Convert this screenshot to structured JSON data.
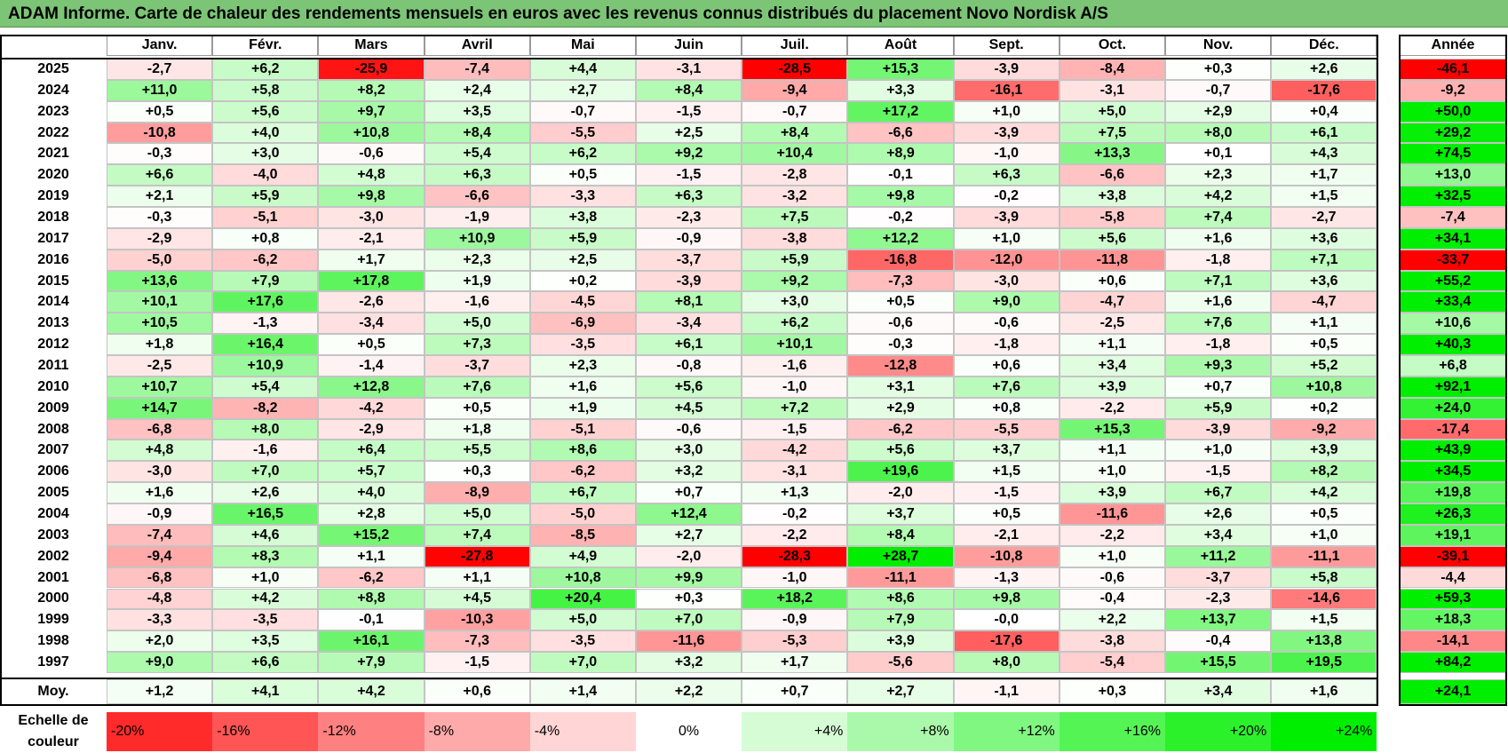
{
  "title": "ADAM Informe. Carte de chaleur des rendements mensuels en euros avec les revenus connus distribués du placement Novo Nordisk A/S",
  "chart_data": {
    "type": "heatmap",
    "title": "ADAM Informe. Carte de chaleur des rendements mensuels en euros avec les revenus connus distribués du placement Novo Nordisk A/S",
    "columns": [
      "Janv.",
      "Févr.",
      "Mars",
      "Avril",
      "Mai",
      "Juin",
      "Juil.",
      "Août",
      "Sept.",
      "Oct.",
      "Nov.",
      "Déc."
    ],
    "year_header": "Année",
    "rows": [
      {
        "label": "2025",
        "values": [
          "-2,7",
          "+6,2",
          "-25,9",
          "-7,4",
          "+4,4",
          "-3,1",
          "-28,5",
          "+15,3",
          "-3,9",
          "-8,4",
          "+0,3",
          "+2,6"
        ],
        "year": "-46,1"
      },
      {
        "label": "2024",
        "values": [
          "+11,0",
          "+5,8",
          "+8,2",
          "+2,4",
          "+2,7",
          "+8,4",
          "-9,4",
          "+3,3",
          "-16,1",
          "-3,1",
          "-0,7",
          "-17,6"
        ],
        "year": "-9,2"
      },
      {
        "label": "2023",
        "values": [
          "+0,5",
          "+5,6",
          "+9,7",
          "+3,5",
          "-0,7",
          "-1,5",
          "-0,7",
          "+17,2",
          "+1,0",
          "+5,0",
          "+2,9",
          "+0,4"
        ],
        "year": "+50,0"
      },
      {
        "label": "2022",
        "values": [
          "-10,8",
          "+4,0",
          "+10,8",
          "+8,4",
          "-5,5",
          "+2,5",
          "+8,4",
          "-6,6",
          "-3,9",
          "+7,5",
          "+8,0",
          "+6,1"
        ],
        "year": "+29,2"
      },
      {
        "label": "2021",
        "values": [
          "-0,3",
          "+3,0",
          "-0,6",
          "+5,4",
          "+6,2",
          "+9,2",
          "+10,4",
          "+8,9",
          "-1,0",
          "+13,3",
          "+0,1",
          "+4,3"
        ],
        "year": "+74,5"
      },
      {
        "label": "2020",
        "values": [
          "+6,6",
          "-4,0",
          "+4,8",
          "+6,3",
          "+0,5",
          "-1,5",
          "-2,8",
          "-0,1",
          "+6,3",
          "-6,6",
          "+2,3",
          "+1,7"
        ],
        "year": "+13,0"
      },
      {
        "label": "2019",
        "values": [
          "+2,1",
          "+5,9",
          "+9,8",
          "-6,6",
          "-3,3",
          "+6,3",
          "-3,2",
          "+9,8",
          "-0,2",
          "+3,8",
          "+4,2",
          "+1,5"
        ],
        "year": "+32,5"
      },
      {
        "label": "2018",
        "values": [
          "-0,3",
          "-5,1",
          "-3,0",
          "-1,9",
          "+3,8",
          "-2,3",
          "+7,5",
          "-0,2",
          "-3,9",
          "-5,8",
          "+7,4",
          "-2,7"
        ],
        "year": "-7,4"
      },
      {
        "label": "2017",
        "values": [
          "-2,9",
          "+0,8",
          "-2,1",
          "+10,9",
          "+5,9",
          "-0,9",
          "-3,8",
          "+12,2",
          "+1,0",
          "+5,6",
          "+1,6",
          "+3,6"
        ],
        "year": "+34,1"
      },
      {
        "label": "2016",
        "values": [
          "-5,0",
          "-6,2",
          "+1,7",
          "+2,3",
          "+2,5",
          "-3,7",
          "+5,9",
          "-16,8",
          "-12,0",
          "-11,8",
          "-1,8",
          "+7,1"
        ],
        "year": "-33,7"
      },
      {
        "label": "2015",
        "values": [
          "+13,6",
          "+7,9",
          "+17,8",
          "+1,9",
          "+0,2",
          "-3,9",
          "+9,2",
          "-7,3",
          "-3,0",
          "+0,6",
          "+7,1",
          "+3,6"
        ],
        "year": "+55,2"
      },
      {
        "label": "2014",
        "values": [
          "+10,1",
          "+17,6",
          "-2,6",
          "-1,6",
          "-4,5",
          "+8,1",
          "+3,0",
          "+0,5",
          "+9,0",
          "-4,7",
          "+1,6",
          "-4,7"
        ],
        "year": "+33,4"
      },
      {
        "label": "2013",
        "values": [
          "+10,5",
          "-1,3",
          "-3,4",
          "+5,0",
          "-6,9",
          "-3,4",
          "+6,2",
          "-0,6",
          "-0,6",
          "-2,5",
          "+7,6",
          "+1,1"
        ],
        "year": "+10,6"
      },
      {
        "label": "2012",
        "values": [
          "+1,8",
          "+16,4",
          "+0,5",
          "+7,3",
          "-3,5",
          "+6,1",
          "+10,1",
          "-0,3",
          "-1,8",
          "+1,1",
          "-1,8",
          "+0,5"
        ],
        "year": "+40,3"
      },
      {
        "label": "2011",
        "values": [
          "-2,5",
          "+10,9",
          "-1,4",
          "-3,7",
          "+2,3",
          "-0,8",
          "-1,6",
          "-12,8",
          "+0,6",
          "+3,4",
          "+9,3",
          "+5,2"
        ],
        "year": "+6,8"
      },
      {
        "label": "2010",
        "values": [
          "+10,7",
          "+5,4",
          "+12,8",
          "+7,6",
          "+1,6",
          "+5,6",
          "-1,0",
          "+3,1",
          "+7,6",
          "+3,9",
          "+0,7",
          "+10,8"
        ],
        "year": "+92,1"
      },
      {
        "label": "2009",
        "values": [
          "+14,7",
          "-8,2",
          "-4,2",
          "+0,5",
          "+1,9",
          "+4,5",
          "+7,2",
          "+2,9",
          "+0,8",
          "-2,2",
          "+5,9",
          "+0,2"
        ],
        "year": "+24,0"
      },
      {
        "label": "2008",
        "values": [
          "-6,8",
          "+8,0",
          "-2,9",
          "+1,8",
          "-5,1",
          "-0,6",
          "-1,5",
          "-6,2",
          "-5,5",
          "+15,3",
          "-3,9",
          "-9,2"
        ],
        "year": "-17,4"
      },
      {
        "label": "2007",
        "values": [
          "+4,8",
          "-1,6",
          "+6,4",
          "+5,5",
          "+8,6",
          "+3,0",
          "-4,2",
          "+5,6",
          "+3,7",
          "+1,1",
          "+1,0",
          "+3,9"
        ],
        "year": "+43,9"
      },
      {
        "label": "2006",
        "values": [
          "-3,0",
          "+7,0",
          "+5,7",
          "+0,3",
          "-6,2",
          "+3,2",
          "-3,1",
          "+19,6",
          "+1,5",
          "+1,0",
          "-1,5",
          "+8,2"
        ],
        "year": "+34,5"
      },
      {
        "label": "2005",
        "values": [
          "+1,6",
          "+2,6",
          "+4,0",
          "-8,9",
          "+6,7",
          "+0,7",
          "+1,3",
          "-2,0",
          "-1,5",
          "+3,9",
          "+6,7",
          "+4,2"
        ],
        "year": "+19,8"
      },
      {
        "label": "2004",
        "values": [
          "-0,9",
          "+16,5",
          "+2,8",
          "+5,0",
          "-5,0",
          "+12,4",
          "-0,2",
          "+3,7",
          "+0,5",
          "-11,6",
          "+2,6",
          "+0,5"
        ],
        "year": "+26,3"
      },
      {
        "label": "2003",
        "values": [
          "-7,4",
          "+4,6",
          "+15,2",
          "+7,4",
          "-8,5",
          "+2,7",
          "-2,2",
          "+8,4",
          "-2,1",
          "-2,2",
          "+3,4",
          "+1,0"
        ],
        "year": "+19,1"
      },
      {
        "label": "2002",
        "values": [
          "-9,4",
          "+8,3",
          "+1,1",
          "-27,8",
          "+4,9",
          "-2,0",
          "-28,3",
          "+28,7",
          "-10,8",
          "+1,0",
          "+11,2",
          "-11,1"
        ],
        "year": "-39,1"
      },
      {
        "label": "2001",
        "values": [
          "-6,8",
          "+1,0",
          "-6,2",
          "+1,1",
          "+10,8",
          "+9,9",
          "-1,0",
          "-11,1",
          "-1,3",
          "-0,6",
          "-3,7",
          "+5,8"
        ],
        "year": "-4,4"
      },
      {
        "label": "2000",
        "values": [
          "-4,8",
          "+4,2",
          "+8,8",
          "+4,5",
          "+20,4",
          "+0,3",
          "+18,2",
          "+8,6",
          "+9,8",
          "-0,4",
          "-2,3",
          "-14,6"
        ],
        "year": "+59,3"
      },
      {
        "label": "1999",
        "values": [
          "-3,3",
          "-3,5",
          "-0,1",
          "-10,3",
          "+5,0",
          "+7,0",
          "-0,9",
          "+7,9",
          "-0,0",
          "+2,2",
          "+13,7",
          "+1,5"
        ],
        "year": "+18,3"
      },
      {
        "label": "1998",
        "values": [
          "+2,0",
          "+3,5",
          "+16,1",
          "-7,3",
          "-3,5",
          "-11,6",
          "-5,3",
          "+3,9",
          "-17,6",
          "-3,8",
          "-0,4",
          "+13,8"
        ],
        "year": "-14,1"
      },
      {
        "label": "1997",
        "values": [
          "+9,0",
          "+6,6",
          "+7,9",
          "-1,5",
          "+7,0",
          "+3,2",
          "+1,7",
          "-5,6",
          "+8,0",
          "-5,4",
          "+15,5",
          "+19,5"
        ],
        "year": "+84,2"
      }
    ],
    "average": {
      "label": "Moy.",
      "values": [
        "+1,2",
        "+4,1",
        "+4,2",
        "+0,6",
        "+1,4",
        "+2,2",
        "+0,7",
        "+2,7",
        "-1,1",
        "+0,3",
        "+3,4",
        "+1,6"
      ],
      "year": "+24,1"
    },
    "color_scale": {
      "label_line1": "Echelle de",
      "label_line2": "couleur",
      "stops": [
        "-20%",
        "-16%",
        "-12%",
        "-8%",
        "-4%",
        "0%",
        "+4%",
        "+8%",
        "+12%",
        "+16%",
        "+20%",
        "+24%"
      ],
      "stop_values": [
        -20,
        -16,
        -12,
        -8,
        -4,
        0,
        4,
        8,
        12,
        16,
        20,
        24
      ],
      "negative_color": "#ff0000",
      "zero_color": "#ffffff",
      "positive_color": "#00ee00"
    }
  }
}
